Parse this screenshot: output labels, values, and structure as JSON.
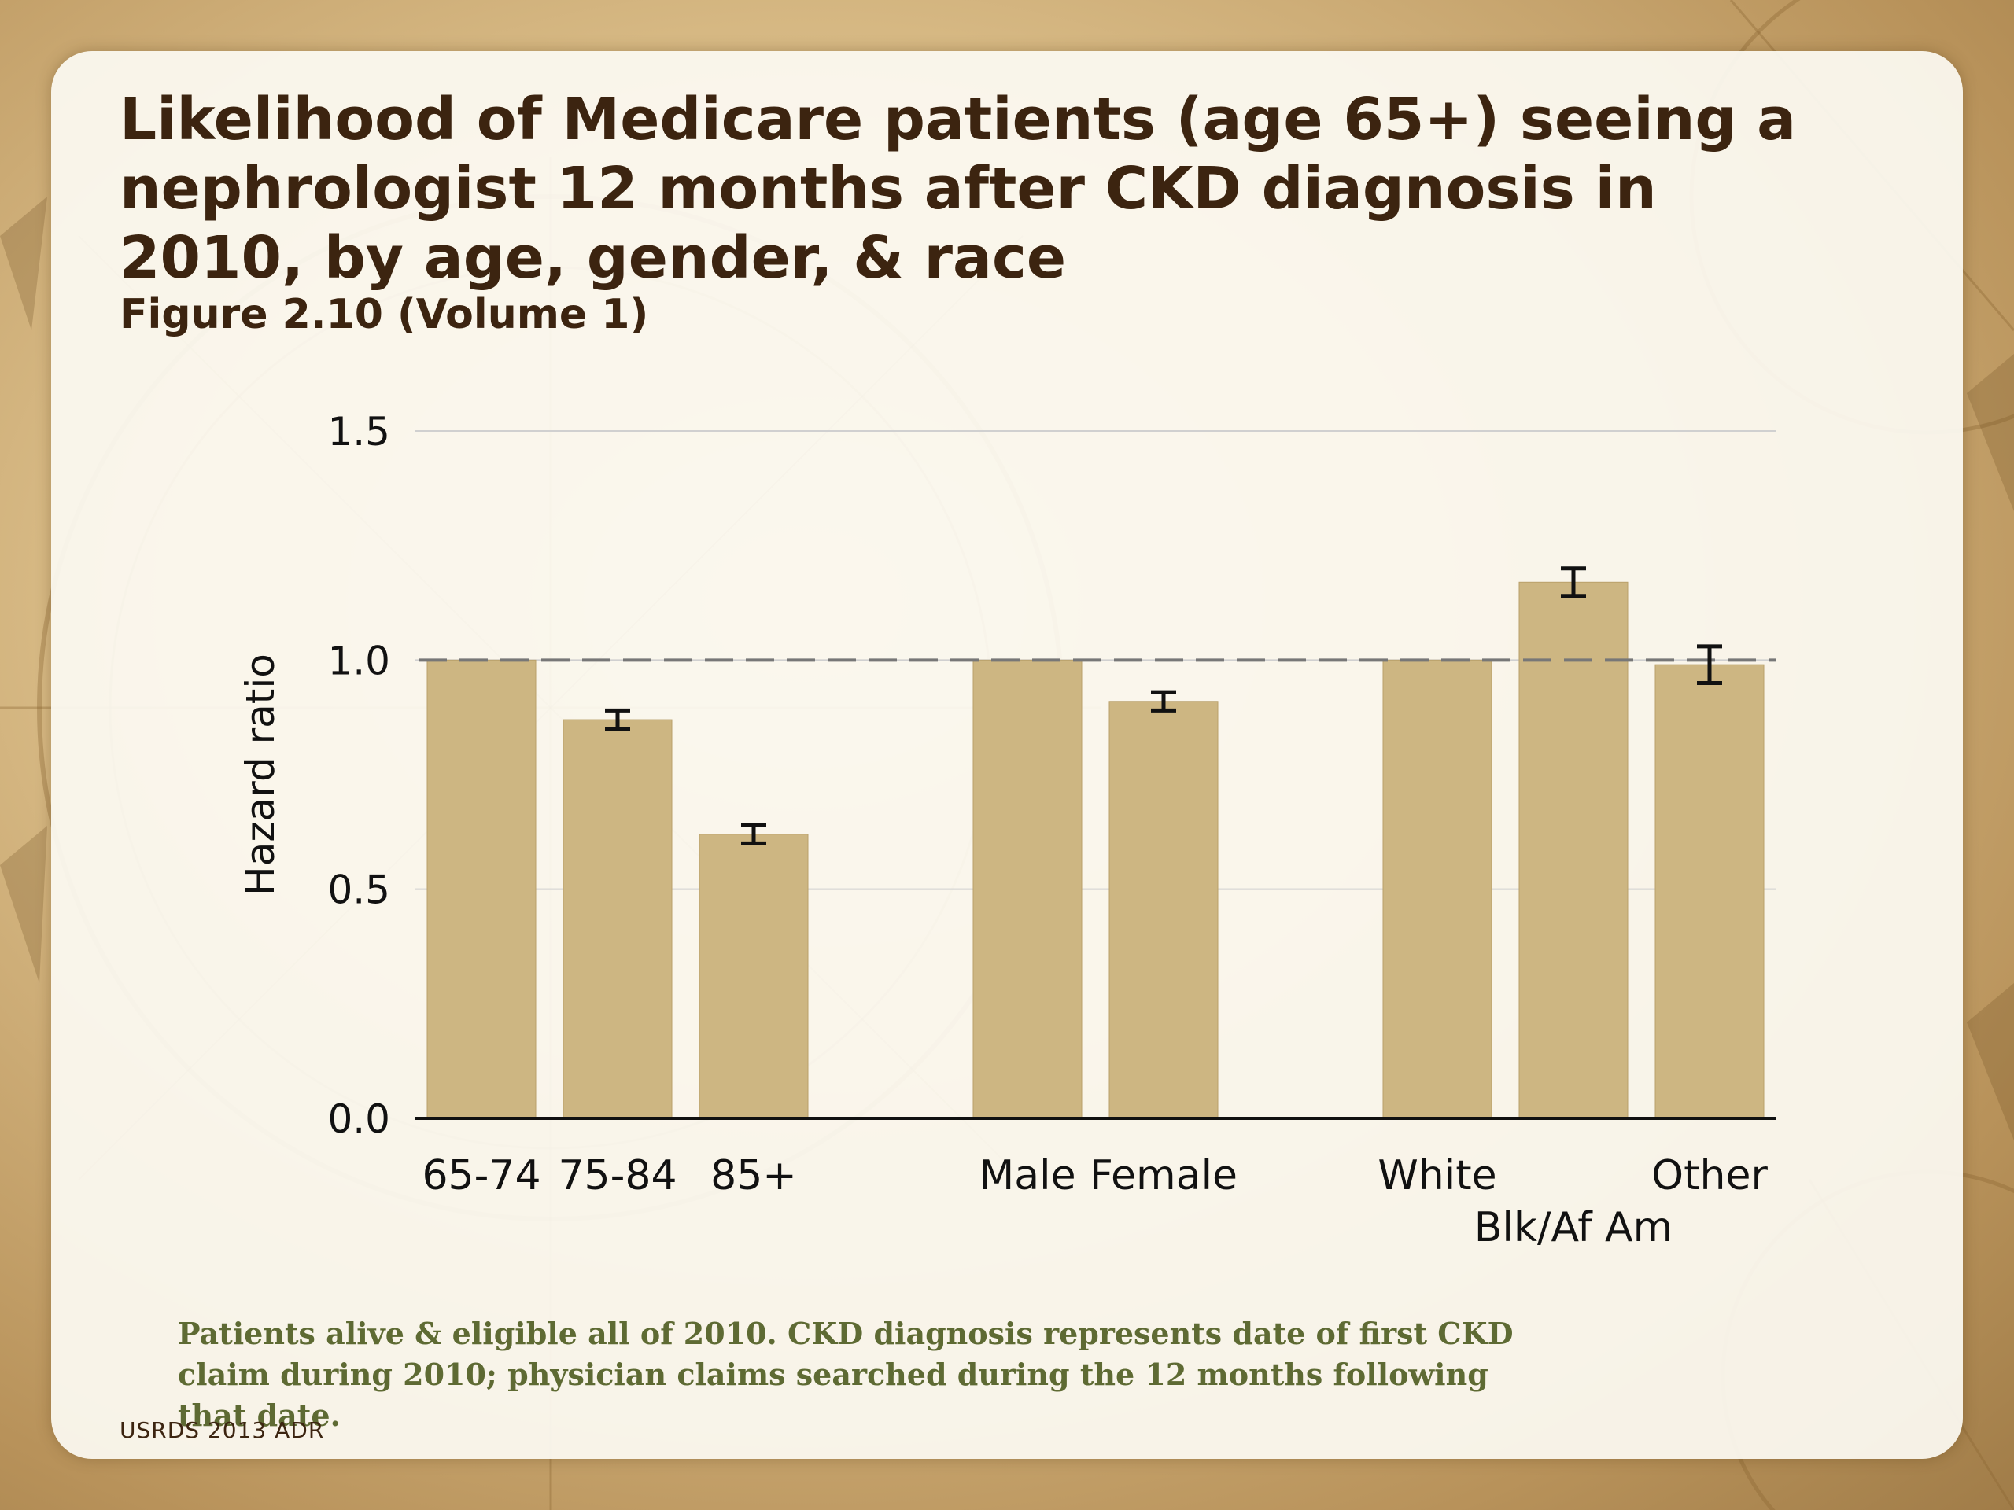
{
  "slide": {
    "title": "Likelihood of Medicare patients (age 65+) seeing a nephrologist 12 months after CKD diagnosis in 2010, by age, gender, & race",
    "subtitle": "Figure 2.10 (Volume 1)",
    "footnote": "Patients alive & eligible all of 2010. CKD diagnosis represents date of first CKD claim during 2010; physician claims searched during the 12 months following that date.",
    "source": "USRDS 2013 ADR"
  },
  "colors": {
    "bar": "#cdb682",
    "bar_edge": "#b9a06a",
    "title_text": "#3c2410",
    "footnote_text": "#5e6a33",
    "reference_line": "#777777",
    "gridline": "#d0d0d0"
  },
  "chart_data": {
    "type": "bar",
    "title": "",
    "xlabel": "",
    "ylabel": "Hazard ratio",
    "ylim": [
      0,
      1.5
    ],
    "yticks": [
      "0.0",
      "0.5",
      "1.0",
      "1.5"
    ],
    "grid": true,
    "reference_line": 1.0,
    "groups": [
      {
        "categories": [
          "65-74",
          "75-84",
          "85+"
        ]
      },
      {
        "categories": [
          "Male",
          "Female"
        ]
      },
      {
        "categories": [
          "White",
          "Blk/Af Am",
          "Other"
        ]
      }
    ],
    "categories": [
      "65-74",
      "75-84",
      "85+",
      "Male",
      "Female",
      "White",
      "Blk/Af Am",
      "Other"
    ],
    "values": [
      1.0,
      0.87,
      0.62,
      1.0,
      0.91,
      1.0,
      1.17,
      0.99
    ],
    "error_low": [
      null,
      0.85,
      0.6,
      null,
      0.89,
      null,
      1.14,
      0.95
    ],
    "error_high": [
      null,
      0.89,
      0.64,
      null,
      0.93,
      null,
      1.2,
      1.03
    ]
  }
}
